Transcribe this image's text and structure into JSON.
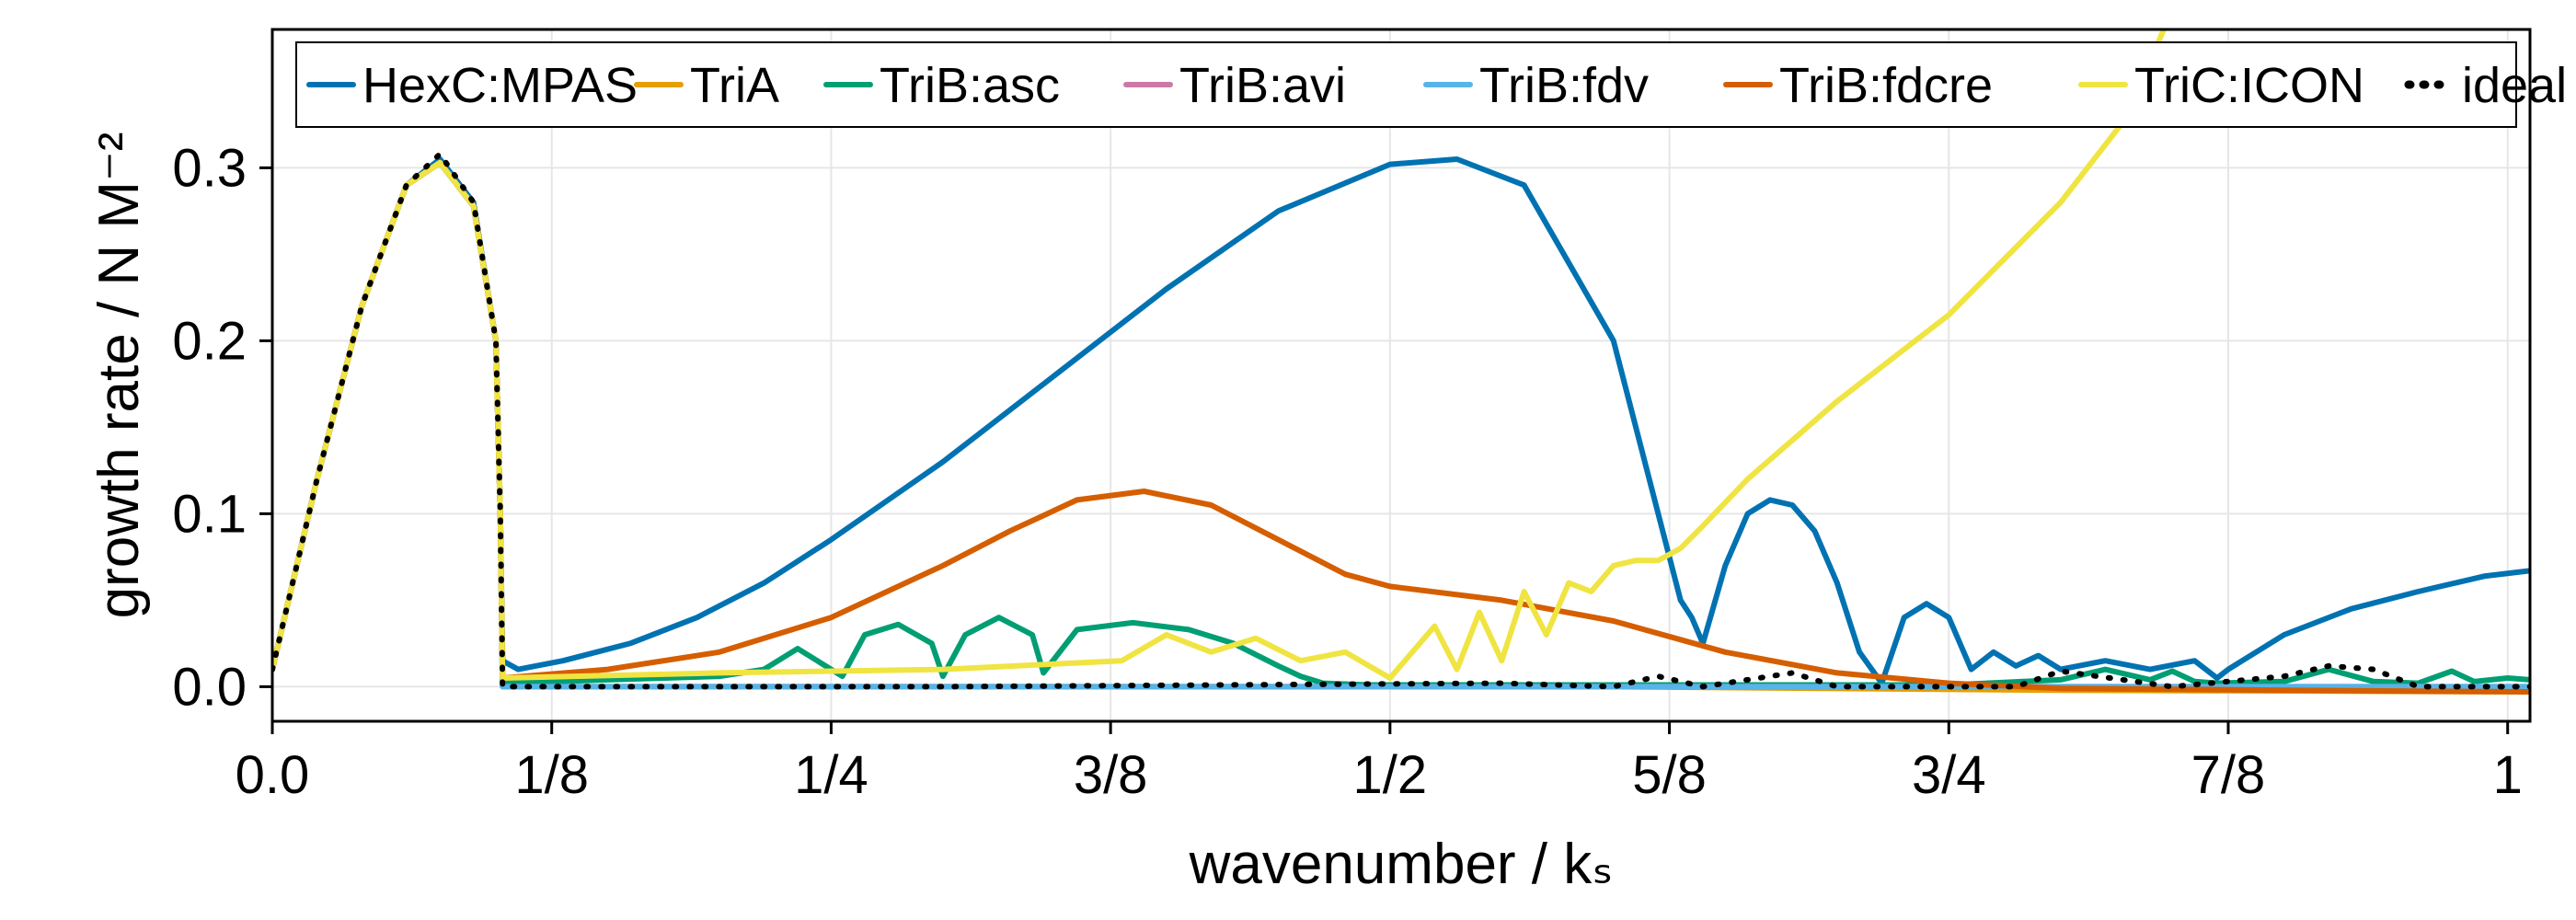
{
  "chart_data": {
    "type": "line",
    "title": "",
    "xlabel": "wavenumber / kₛ",
    "ylabel": "growth rate / N M⁻²",
    "xlim": [
      0,
      1.01
    ],
    "ylim": [
      -0.02,
      0.38
    ],
    "xticks": [
      {
        "value": 0,
        "label": "0.0"
      },
      {
        "value": 0.125,
        "label": "1/8"
      },
      {
        "value": 0.25,
        "label": "1/4"
      },
      {
        "value": 0.375,
        "label": "3/8"
      },
      {
        "value": 0.5,
        "label": "1/2"
      },
      {
        "value": 0.625,
        "label": "5/8"
      },
      {
        "value": 0.75,
        "label": "3/4"
      },
      {
        "value": 0.875,
        "label": "7/8"
      },
      {
        "value": 1,
        "label": "1"
      }
    ],
    "yticks": [
      {
        "value": 0,
        "label": "0.0"
      },
      {
        "value": 0.1,
        "label": "0.1"
      },
      {
        "value": 0.2,
        "label": "0.2"
      },
      {
        "value": 0.3,
        "label": "0.3"
      }
    ],
    "grid": true,
    "legend_position": "top, inside plot, single row",
    "series": [
      {
        "name": "HexC:MPAS",
        "color": "#0072b2",
        "style": "solid",
        "x": [
          0,
          0.02,
          0.04,
          0.06,
          0.075,
          0.09,
          0.1,
          0.102,
          0.103,
          0.11,
          0.13,
          0.16,
          0.19,
          0.22,
          0.25,
          0.3,
          0.35,
          0.4,
          0.45,
          0.5,
          0.53,
          0.56,
          0.6,
          0.62,
          0.63,
          0.635,
          0.64,
          0.65,
          0.66,
          0.67,
          0.68,
          0.69,
          0.7,
          0.71,
          0.72,
          0.73,
          0.74,
          0.75,
          0.76,
          0.77,
          0.78,
          0.79,
          0.8,
          0.82,
          0.84,
          0.86,
          0.87,
          0.875,
          0.9,
          0.93,
          0.96,
          0.99,
          1.01
        ],
        "y": [
          0.01,
          0.12,
          0.22,
          0.29,
          0.305,
          0.28,
          0.2,
          0.1,
          0.015,
          0.01,
          0.015,
          0.025,
          0.04,
          0.06,
          0.085,
          0.13,
          0.18,
          0.23,
          0.275,
          0.302,
          0.305,
          0.29,
          0.2,
          0.1,
          0.05,
          0.04,
          0.025,
          0.07,
          0.1,
          0.108,
          0.105,
          0.09,
          0.06,
          0.02,
          0.002,
          0.04,
          0.048,
          0.04,
          0.01,
          0.02,
          0.012,
          0.018,
          0.01,
          0.015,
          0.01,
          0.015,
          0.005,
          0.01,
          0.03,
          0.045,
          0.055,
          0.064,
          0.067
        ]
      },
      {
        "name": "TriA",
        "color": "#e69f00",
        "style": "solid",
        "x": [
          0,
          0.02,
          0.04,
          0.06,
          0.075,
          0.09,
          0.1,
          0.102,
          0.103,
          0.2,
          0.4,
          0.6,
          0.8,
          1.01
        ],
        "y": [
          0.01,
          0.12,
          0.22,
          0.29,
          0.303,
          0.278,
          0.2,
          0.1,
          0.0,
          0.0,
          0.0,
          0.0,
          -0.002,
          -0.003
        ]
      },
      {
        "name": "TriB:asc",
        "color": "#009e73",
        "style": "solid",
        "x": [
          0,
          0.02,
          0.04,
          0.06,
          0.075,
          0.09,
          0.1,
          0.102,
          0.103,
          0.15,
          0.2,
          0.22,
          0.235,
          0.25,
          0.255,
          0.265,
          0.28,
          0.295,
          0.3,
          0.31,
          0.325,
          0.34,
          0.345,
          0.36,
          0.385,
          0.41,
          0.43,
          0.45,
          0.46,
          0.47,
          0.49,
          0.6,
          0.75,
          0.8,
          0.82,
          0.84,
          0.85,
          0.86,
          0.87,
          0.9,
          0.92,
          0.94,
          0.96,
          0.975,
          0.985,
          1.0,
          1.01
        ],
        "y": [
          0.01,
          0.12,
          0.22,
          0.29,
          0.303,
          0.278,
          0.2,
          0.1,
          0.002,
          0.004,
          0.006,
          0.01,
          0.022,
          0.01,
          0.006,
          0.03,
          0.036,
          0.025,
          0.006,
          0.03,
          0.04,
          0.03,
          0.008,
          0.033,
          0.037,
          0.033,
          0.025,
          0.012,
          0.006,
          0.002,
          0.001,
          0.001,
          0.001,
          0.004,
          0.01,
          0.004,
          0.009,
          0.003,
          0.002,
          0.003,
          0.01,
          0.003,
          0.002,
          0.009,
          0.003,
          0.005,
          0.004
        ]
      },
      {
        "name": "TriB:avi",
        "color": "#cc79a7",
        "style": "solid",
        "x": [
          0,
          0.02,
          0.04,
          0.06,
          0.075,
          0.09,
          0.1,
          0.102,
          0.103,
          0.3,
          0.6,
          1.01
        ],
        "y": [
          0.01,
          0.12,
          0.22,
          0.29,
          0.303,
          0.278,
          0.2,
          0.1,
          0.0,
          0.0,
          0.0,
          0.0
        ]
      },
      {
        "name": "TriB:fdv",
        "color": "#56b4e9",
        "style": "solid",
        "x": [
          0,
          0.02,
          0.04,
          0.06,
          0.075,
          0.09,
          0.1,
          0.102,
          0.103,
          0.3,
          0.6,
          1.01
        ],
        "y": [
          0.01,
          0.12,
          0.22,
          0.29,
          0.303,
          0.278,
          0.2,
          0.1,
          0.0,
          0.0,
          0.0,
          0.0
        ]
      },
      {
        "name": "TriB:fdcre",
        "color": "#d55e00",
        "style": "solid",
        "x": [
          0,
          0.02,
          0.04,
          0.06,
          0.075,
          0.09,
          0.1,
          0.102,
          0.103,
          0.15,
          0.2,
          0.25,
          0.3,
          0.33,
          0.36,
          0.39,
          0.42,
          0.45,
          0.48,
          0.5,
          0.55,
          0.6,
          0.65,
          0.7,
          0.75,
          0.8,
          0.9,
          1.01
        ],
        "y": [
          0.01,
          0.12,
          0.22,
          0.29,
          0.303,
          0.278,
          0.2,
          0.1,
          0.005,
          0.01,
          0.02,
          0.04,
          0.07,
          0.09,
          0.108,
          0.113,
          0.105,
          0.085,
          0.065,
          0.058,
          0.05,
          0.038,
          0.02,
          0.008,
          0.002,
          -0.001,
          -0.002,
          -0.003
        ]
      },
      {
        "name": "TriC:ICON",
        "color": "#f0e442",
        "style": "solid",
        "x": [
          0,
          0.02,
          0.04,
          0.06,
          0.075,
          0.09,
          0.1,
          0.102,
          0.103,
          0.2,
          0.3,
          0.38,
          0.4,
          0.42,
          0.44,
          0.46,
          0.48,
          0.5,
          0.52,
          0.53,
          0.54,
          0.55,
          0.56,
          0.57,
          0.58,
          0.59,
          0.6,
          0.61,
          0.62,
          0.63,
          0.64,
          0.66,
          0.7,
          0.75,
          0.8,
          0.83,
          0.8461
        ],
        "y": [
          0.01,
          0.12,
          0.22,
          0.29,
          0.303,
          0.278,
          0.2,
          0.1,
          0.005,
          0.008,
          0.01,
          0.015,
          0.03,
          0.02,
          0.028,
          0.015,
          0.02,
          0.005,
          0.035,
          0.01,
          0.043,
          0.015,
          0.055,
          0.03,
          0.06,
          0.055,
          0.07,
          0.073,
          0.073,
          0.08,
          0.093,
          0.12,
          0.165,
          0.215,
          0.28,
          0.33,
          0.38
        ]
      },
      {
        "name": "ideal",
        "color": "#000000",
        "style": "dotted",
        "x": [
          0,
          0.02,
          0.04,
          0.06,
          0.075,
          0.09,
          0.1,
          0.102,
          0.103,
          0.3,
          0.55,
          0.6,
          0.62,
          0.64,
          0.68,
          0.7,
          0.75,
          0.78,
          0.8,
          0.85,
          0.9,
          0.92,
          0.94,
          0.96,
          1.0,
          1.01
        ],
        "y": [
          0.01,
          0.12,
          0.22,
          0.29,
          0.308,
          0.28,
          0.2,
          0.1,
          0.0,
          0.0,
          0.002,
          0.0,
          0.006,
          0.0,
          0.008,
          0.0,
          0.0,
          0.0,
          0.009,
          0.0,
          0.006,
          0.012,
          0.01,
          0.0,
          0.0,
          0.0
        ]
      }
    ]
  }
}
